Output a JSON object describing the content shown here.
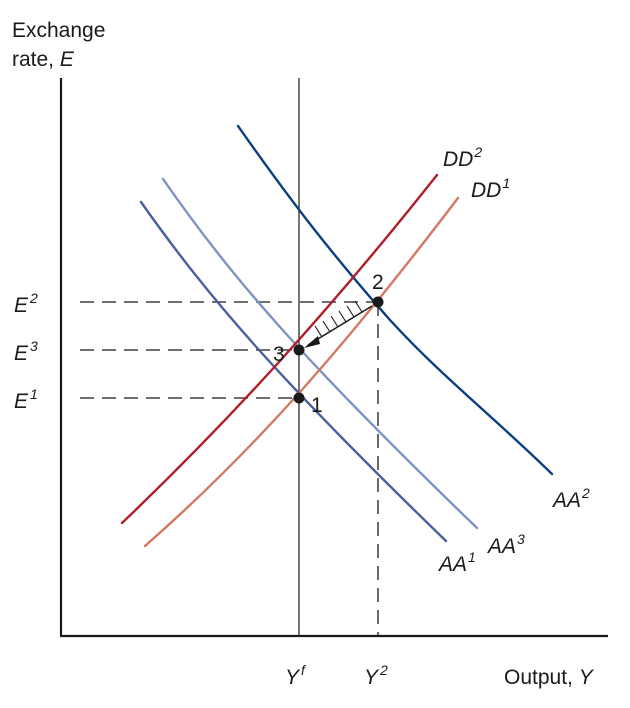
{
  "axes": {
    "y_label_line1": "Exchange",
    "y_label_line2_text": "rate, ",
    "y_label_line2_var": "E",
    "x_label_text": "Output, ",
    "x_label_var": "Y"
  },
  "y_ticks": [
    {
      "base": "E",
      "sup": "2"
    },
    {
      "base": "E",
      "sup": "3"
    },
    {
      "base": "E",
      "sup": "1"
    }
  ],
  "x_ticks": [
    {
      "base": "Y",
      "sup": "f"
    },
    {
      "base": "Y",
      "sup": "2"
    }
  ],
  "curves": [
    {
      "base": "AA",
      "sup": "1",
      "color": "#4a5fa0"
    },
    {
      "base": "AA",
      "sup": "3",
      "color": "#7d93c4"
    },
    {
      "base": "AA",
      "sup": "2",
      "color": "#0b3f80"
    },
    {
      "base": "DD",
      "sup": "2",
      "color": "#b01e2a"
    },
    {
      "base": "DD",
      "sup": "1",
      "color": "#d47862"
    }
  ],
  "points": [
    "1",
    "2",
    "3"
  ]
}
